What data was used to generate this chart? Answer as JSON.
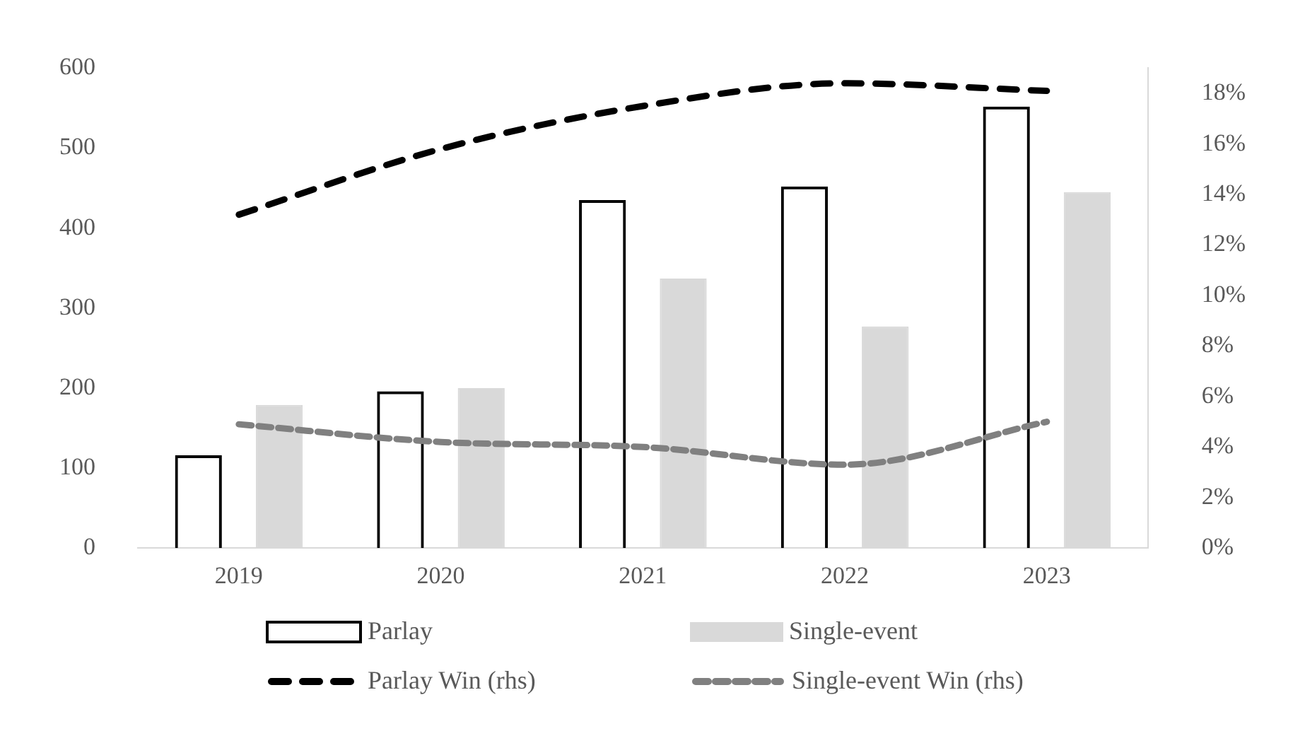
{
  "chart_data": {
    "type": "bar",
    "categories": [
      "2019",
      "2020",
      "2021",
      "2022",
      "2023"
    ],
    "series": [
      {
        "name": "Parlay",
        "color": "#000000",
        "values": [
          116,
          196,
          435,
          452,
          552
        ]
      },
      {
        "name": "Single-event",
        "color": "#d9d9d9",
        "values": [
          179,
          200,
          337,
          277,
          445
        ]
      },
      {
        "name": "Parlay Win (rhs)",
        "type": "line",
        "axis": "y2",
        "color": "#000000",
        "line_style": "dashed",
        "values": [
          13.2,
          15.8,
          17.5,
          18.4,
          18.1
        ]
      },
      {
        "name": "Single-event Win (rhs)",
        "type": "line",
        "axis": "y2",
        "color": "#808080",
        "line_style": "dashed",
        "values": [
          4.9,
          4.2,
          4.0,
          3.3,
          5.0
        ]
      }
    ],
    "ylim": [
      0,
      600
    ],
    "yticks": [
      0,
      100,
      200,
      300,
      400,
      500,
      600
    ],
    "y2lim": [
      0,
      19
    ],
    "y2ticks": [
      {
        "value": 0,
        "label": "0%"
      },
      {
        "value": 2,
        "label": "2%"
      },
      {
        "value": 4,
        "label": "4%"
      },
      {
        "value": 6,
        "label": "6%"
      },
      {
        "value": 8,
        "label": "8%"
      },
      {
        "value": 10,
        "label": "10%"
      },
      {
        "value": 12,
        "label": "12%"
      },
      {
        "value": 14,
        "label": "14%"
      },
      {
        "value": 16,
        "label": "16%"
      },
      {
        "value": 18,
        "label": "18%"
      }
    ],
    "grid": false,
    "legend": "bottom",
    "marker": "none"
  }
}
